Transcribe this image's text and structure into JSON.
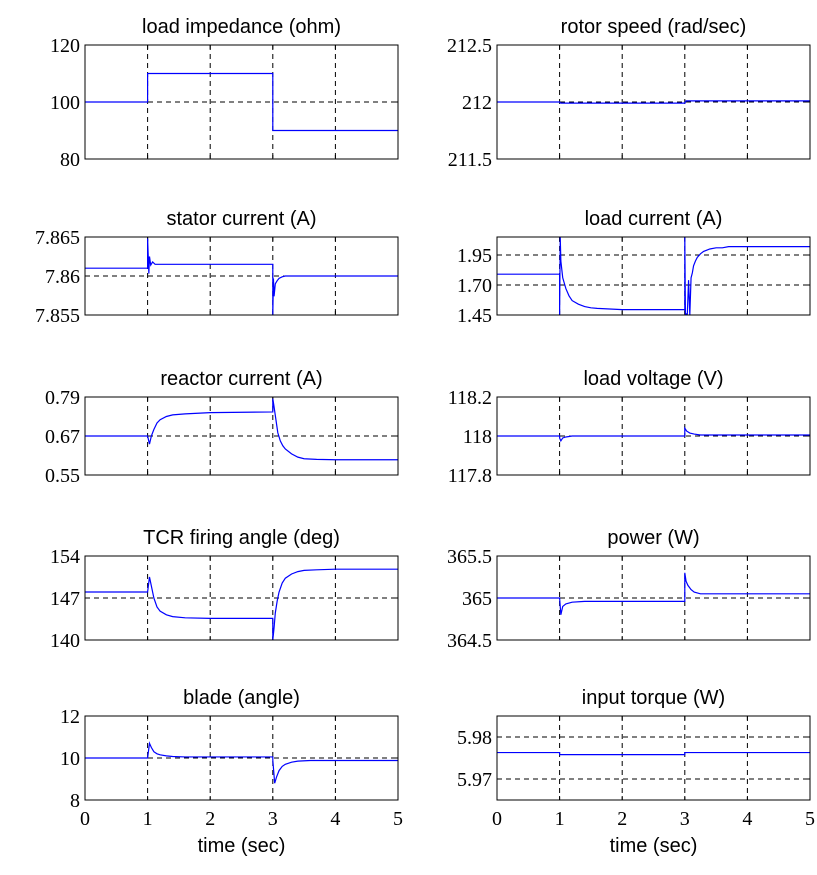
{
  "chart_data": [
    {
      "type": "line",
      "title": "load impedance (ohm)",
      "xlabel": "",
      "xlim": [
        0,
        5
      ],
      "ylim": [
        80,
        120
      ],
      "yticks": [
        "80",
        "100",
        "120"
      ],
      "xticks": [],
      "grid": true,
      "series": [
        {
          "x": [
            0,
            1,
            1,
            3,
            3,
            5
          ],
          "y": [
            100,
            100,
            110,
            110,
            90,
            90
          ],
          "color": "#0000ff"
        }
      ]
    },
    {
      "type": "line",
      "title": "rotor speed (rad/sec)",
      "xlabel": "",
      "xlim": [
        0,
        5
      ],
      "ylim": [
        211.5,
        212.5
      ],
      "yticks": [
        "211.5",
        "212",
        "212.5"
      ],
      "xticks": [],
      "grid": true,
      "series": [
        {
          "x": [
            0,
            1,
            1.02,
            3,
            3.02,
            5
          ],
          "y": [
            212,
            212,
            211.99,
            211.99,
            212.01,
            212.01
          ],
          "color": "#0000ff"
        }
      ]
    },
    {
      "type": "line",
      "title": "stator current (A)",
      "xlabel": "",
      "xlim": [
        0,
        5
      ],
      "ylim": [
        7.855,
        7.865
      ],
      "yticks": [
        "7.855",
        "7.86",
        "7.865"
      ],
      "xticks": [],
      "grid": true,
      "series": [
        {
          "x": [
            0,
            1,
            1,
            1.02,
            1.03,
            1.05,
            1.08,
            1.12,
            1.2,
            3,
            3,
            3.01,
            3.02,
            3.04,
            3.07,
            3.1,
            3.15,
            3.2,
            5
          ],
          "y": [
            7.861,
            7.861,
            7.8648,
            7.8603,
            7.8625,
            7.8614,
            7.8618,
            7.8615,
            7.8615,
            7.8615,
            7.855,
            7.8597,
            7.8574,
            7.859,
            7.8594,
            7.8597,
            7.8599,
            7.86,
            7.86
          ],
          "color": "#0000ff"
        }
      ]
    },
    {
      "type": "line",
      "title": "load current (A)",
      "xlabel": "",
      "xlim": [
        0,
        5
      ],
      "ylim": [
        1.45,
        2.1
      ],
      "yticks": [
        "1.45",
        "1.70",
        "1.95"
      ],
      "xticks": [],
      "grid": true,
      "series": [
        {
          "x": [
            0,
            1,
            1,
            1.01,
            1.02,
            1.05,
            1.1,
            1.15,
            1.2,
            1.3,
            1.4,
            1.5,
            1.6,
            1.8,
            2.0,
            3.0,
            3.0,
            3.01,
            3.02,
            3.04,
            3.06,
            3.08,
            3.1,
            3.12,
            3.14,
            3.17,
            3.2,
            3.25,
            3.3,
            3.4,
            3.5,
            3.6,
            3.7,
            5
          ],
          "y": [
            1.79,
            1.79,
            1.45,
            2.1,
            1.9,
            1.76,
            1.67,
            1.61,
            1.57,
            1.54,
            1.52,
            1.51,
            1.505,
            1.5,
            1.495,
            1.495,
            2.1,
            1.45,
            1.46,
            1.45,
            1.74,
            1.45,
            1.76,
            1.8,
            1.86,
            1.9,
            1.93,
            1.96,
            1.98,
            2.0,
            2.01,
            2.01,
            2.02,
            2.02
          ],
          "color": "#0000ff"
        }
      ]
    },
    {
      "type": "line",
      "title": "reactor current (A)",
      "xlabel": "",
      "xlim": [
        0,
        5
      ],
      "ylim": [
        0.55,
        0.79
      ],
      "yticks": [
        "0.55",
        "0.67",
        "0.79"
      ],
      "xticks": [],
      "grid": true,
      "series": [
        {
          "x": [
            0,
            1,
            1.0,
            1.03,
            1.06,
            1.1,
            1.15,
            1.2,
            1.3,
            1.4,
            1.6,
            2.0,
            3.0,
            3.0,
            3.02,
            3.05,
            3.08,
            3.12,
            3.16,
            3.2,
            3.3,
            3.4,
            3.5,
            3.7,
            4.0,
            5
          ],
          "y": [
            0.67,
            0.67,
            0.67,
            0.645,
            0.67,
            0.69,
            0.71,
            0.72,
            0.73,
            0.735,
            0.738,
            0.742,
            0.744,
            0.785,
            0.76,
            0.72,
            0.68,
            0.655,
            0.64,
            0.63,
            0.615,
            0.605,
            0.6,
            0.598,
            0.597,
            0.597
          ],
          "color": "#0000ff"
        }
      ]
    },
    {
      "type": "line",
      "title": "load voltage (V)",
      "xlabel": "",
      "xlim": [
        0,
        5
      ],
      "ylim": [
        117.8,
        118.2
      ],
      "yticks": [
        "117.8",
        "118",
        "118.2"
      ],
      "xticks": [],
      "grid": true,
      "series": [
        {
          "x": [
            0,
            1,
            1.0,
            1.02,
            1.05,
            1.1,
            1.2,
            3.0,
            3.0,
            3.03,
            3.08,
            3.15,
            3.25,
            5
          ],
          "y": [
            118.0,
            118.0,
            117.99,
            117.975,
            117.99,
            117.995,
            118.0,
            118.0,
            118.04,
            118.025,
            118.015,
            118.01,
            118.005,
            118.005
          ],
          "color": "#0000ff"
        }
      ]
    },
    {
      "type": "line",
      "title": "TCR firing angle (deg)",
      "xlabel": "",
      "xlim": [
        0,
        5
      ],
      "ylim": [
        140,
        154
      ],
      "yticks": [
        "140",
        "147",
        "154"
      ],
      "xticks": [],
      "grid": true,
      "series": [
        {
          "x": [
            0,
            1,
            1.0,
            1.03,
            1.06,
            1.1,
            1.15,
            1.2,
            1.3,
            1.4,
            1.6,
            2.0,
            3.0,
            3.0,
            3.02,
            3.04,
            3.07,
            3.1,
            3.15,
            3.2,
            3.3,
            3.4,
            3.5,
            3.7,
            4.0,
            5
          ],
          "y": [
            148.0,
            148.0,
            148.0,
            150.5,
            149.0,
            147.0,
            145.5,
            144.8,
            144.2,
            143.9,
            143.7,
            143.6,
            143.6,
            140.0,
            142.0,
            144.5,
            146.5,
            148.0,
            149.5,
            150.3,
            151.0,
            151.4,
            151.6,
            151.7,
            151.8,
            151.8
          ],
          "color": "#0000ff"
        }
      ]
    },
    {
      "type": "line",
      "title": "power (W)",
      "xlabel": "",
      "xlim": [
        0,
        5
      ],
      "ylim": [
        364.5,
        365.5
      ],
      "yticks": [
        "364.5",
        "365",
        "365.5"
      ],
      "xticks": [],
      "grid": true,
      "series": [
        {
          "x": [
            0,
            1,
            1.0,
            1.02,
            1.05,
            1.1,
            1.2,
            1.4,
            3.0,
            3.0,
            3.02,
            3.05,
            3.1,
            3.15,
            3.25,
            3.4,
            5
          ],
          "y": [
            365.0,
            365.0,
            365.0,
            364.8,
            364.9,
            364.93,
            364.95,
            364.96,
            364.96,
            365.3,
            365.2,
            365.15,
            365.1,
            365.07,
            365.05,
            365.05,
            365.05
          ],
          "color": "#0000ff"
        }
      ]
    },
    {
      "type": "line",
      "title": "blade (angle)",
      "xlabel": "time (sec)",
      "xlim": [
        0,
        5
      ],
      "ylim": [
        8,
        12
      ],
      "yticks": [
        "8",
        "10",
        "12"
      ],
      "xticks": [
        "0",
        "1",
        "2",
        "3",
        "4",
        "5"
      ],
      "grid": true,
      "series": [
        {
          "x": [
            0,
            1,
            1.0,
            1.03,
            1.06,
            1.1,
            1.15,
            1.2,
            1.3,
            1.4,
            1.6,
            3.0,
            3.0,
            3.03,
            3.06,
            3.1,
            3.15,
            3.2,
            3.3,
            3.4,
            3.6,
            5
          ],
          "y": [
            10.0,
            10.0,
            10.0,
            10.7,
            10.5,
            10.3,
            10.2,
            10.15,
            10.1,
            10.07,
            10.05,
            10.05,
            9.9,
            8.8,
            9.1,
            9.4,
            9.6,
            9.7,
            9.8,
            9.85,
            9.88,
            9.88
          ],
          "color": "#0000ff"
        }
      ]
    },
    {
      "type": "line",
      "title": "input torque (W)",
      "xlabel": "time (sec)",
      "xlim": [
        0,
        5
      ],
      "ylim": [
        5.965,
        5.985
      ],
      "yticks": [
        "5.97",
        "5.98"
      ],
      "xticks": [
        "0",
        "1",
        "2",
        "3",
        "4",
        "5"
      ],
      "grid": true,
      "series": [
        {
          "x": [
            0,
            1,
            1.0,
            3.0,
            3.0,
            5
          ],
          "y": [
            5.9763,
            5.9763,
            5.9758,
            5.9758,
            5.9763,
            5.9763
          ],
          "color": "#0000ff"
        }
      ]
    }
  ]
}
